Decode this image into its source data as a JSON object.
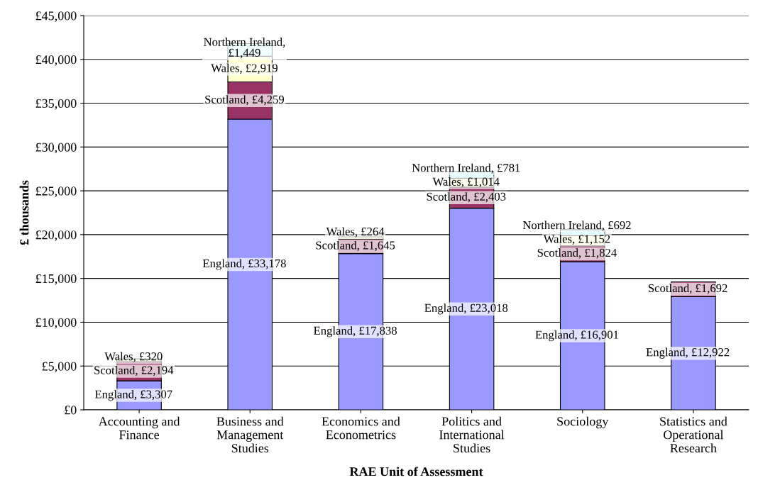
{
  "chart_data": {
    "type": "bar",
    "stacked": true,
    "xlabel": "RAE Unit of Assessment",
    "ylabel": "£ thousands",
    "categories": [
      "Accounting and\nFinance",
      "Business and\nManagement\nStudies",
      "Economics and\nEconometrics",
      "Politics and\nInternational\nStudies",
      "Sociology",
      "Statistics and\nOperational\nResearch"
    ],
    "series": [
      {
        "color": "#9999ff",
        "values": [
          3307,
          33178,
          17838,
          23018,
          16901,
          12922
        ],
        "value_labels": [
          "England, £3,307",
          "England, £33,178",
          "England, £17,838",
          "England, £23,018",
          "England, £16,901",
          "England, £12,922"
        ]
      },
      {
        "color": "#993366",
        "values": [
          2194,
          4259,
          1645,
          2403,
          1824,
          1692
        ],
        "value_labels": [
          "Scotland, £2,194",
          "Scotland, £4,259",
          "Scotland, £1,645",
          "Scotland, £2,403",
          "Scotland, £1,824",
          "Scotland, £1,692"
        ]
      },
      {
        "color": "#ffffcc",
        "values": [
          320,
          2919,
          264,
          1014,
          1152,
          null
        ],
        "value_labels": [
          "Wales, £320",
          "Wales, £2,919",
          "Wales, £264",
          "Wales, £1,014",
          "Wales, £1,152",
          null
        ]
      },
      {
        "color": "#ccffff",
        "values": [
          null,
          1449,
          null,
          781,
          692,
          null
        ],
        "value_labels": [
          null,
          "Northern Ireland,\n£1,449",
          null,
          "Northern Ireland, £781",
          "Northern Ireland, £692",
          null
        ]
      }
    ],
    "ylim": [
      0,
      45000
    ],
    "yticks": [
      {
        "value": 0,
        "label": "£0"
      },
      {
        "value": 5000,
        "label": "£5,000"
      },
      {
        "value": 10000,
        "label": "£10,000"
      },
      {
        "value": 15000,
        "label": "£15,000"
      },
      {
        "value": 20000,
        "label": "£20,000"
      },
      {
        "value": 25000,
        "label": "£25,000"
      },
      {
        "value": 30000,
        "label": "£30,000"
      },
      {
        "value": 35000,
        "label": "£35,000"
      },
      {
        "value": 40000,
        "label": "£40,000"
      },
      {
        "value": 45000,
        "label": "£45,000"
      }
    ],
    "grid": "y",
    "legend": false
  }
}
